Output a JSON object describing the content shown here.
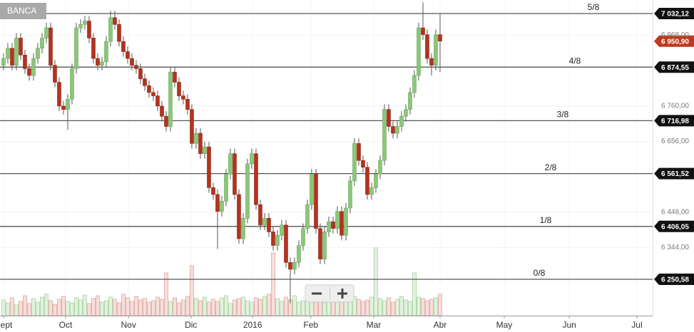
{
  "chart_data": {
    "type": "candlestick",
    "title": "BANCA",
    "x": [
      0,
      1,
      2,
      3,
      4,
      5,
      6,
      7,
      8,
      9,
      10,
      11,
      12,
      13,
      14,
      15,
      16,
      17,
      18,
      19,
      20,
      21,
      22,
      23,
      24,
      25,
      26,
      27,
      28,
      29,
      30,
      31,
      32,
      33,
      34,
      35,
      36,
      37,
      38,
      39,
      40,
      41,
      42,
      43,
      44,
      45,
      46,
      47,
      48,
      49,
      50,
      51,
      52,
      53,
      54,
      55,
      56,
      57,
      58,
      59,
      60,
      61,
      62,
      63,
      64,
      65,
      66,
      67,
      68,
      69,
      70,
      71,
      72,
      73,
      74,
      75,
      76,
      77,
      78,
      79,
      80,
      81,
      82,
      83,
      84,
      85,
      86,
      87,
      88,
      89,
      90,
      91,
      92,
      93,
      94,
      95,
      96,
      97,
      98,
      99,
      100,
      101,
      102
    ],
    "open": [
      6880,
      6900,
      6930,
      6880,
      6960,
      6910,
      6870,
      6850,
      6900,
      6930,
      6960,
      6990,
      6880,
      6830,
      6760,
      6750,
      6780,
      6870,
      6990,
      7000,
      7010,
      6960,
      6900,
      6880,
      6890,
      6950,
      7020,
      7000,
      6950,
      6920,
      6900,
      6880,
      6870,
      6840,
      6820,
      6800,
      6790,
      6760,
      6730,
      6700,
      6860,
      6830,
      6790,
      6780,
      6750,
      6650,
      6680,
      6620,
      6640,
      6520,
      6500,
      6450,
      6480,
      6560,
      6620,
      6500,
      6370,
      6430,
      6590,
      6620,
      6470,
      6410,
      6430,
      6390,
      6350,
      6380,
      6410,
      6300,
      6280,
      6300,
      6350,
      6400,
      6470,
      6560,
      6400,
      6310,
      6390,
      6420,
      6400,
      6450,
      6380,
      6460,
      6540,
      6650,
      6600,
      6580,
      6500,
      6520,
      6560,
      6600,
      6750,
      6700,
      6680,
      6700,
      6730,
      6750,
      6800,
      6850,
      6990,
      6970,
      6900,
      6880,
      6970
    ],
    "high": [
      6915,
      6945,
      6945,
      6975,
      6975,
      6925,
      6885,
      6915,
      6945,
      6975,
      7005,
      7005,
      6895,
      6845,
      6775,
      6795,
      6885,
      7005,
      7015,
      7025,
      7025,
      6975,
      6915,
      6905,
      6965,
      7040,
      7040,
      7015,
      6965,
      6935,
      6915,
      6895,
      6885,
      6855,
      6835,
      6815,
      6805,
      6775,
      6745,
      6875,
      6875,
      6845,
      6805,
      6795,
      6765,
      6695,
      6695,
      6655,
      6655,
      6535,
      6515,
      6495,
      6575,
      6635,
      6635,
      6515,
      6445,
      6605,
      6635,
      6635,
      6485,
      6445,
      6445,
      6405,
      6395,
      6425,
      6425,
      6315,
      6315,
      6365,
      6415,
      6485,
      6575,
      6575,
      6415,
      6405,
      6435,
      6435,
      6465,
      6465,
      6475,
      6555,
      6665,
      6665,
      6615,
      6595,
      6535,
      6575,
      6615,
      6765,
      6765,
      6715,
      6715,
      6745,
      6765,
      6815,
      6865,
      7005,
      7065,
      6985,
      6915,
      6985,
      7032
    ],
    "low": [
      6865,
      6885,
      6865,
      6865,
      6895,
      6855,
      6835,
      6835,
      6885,
      6915,
      6945,
      6865,
      6815,
      6745,
      6735,
      6690,
      6765,
      6855,
      6975,
      6985,
      6945,
      6885,
      6865,
      6865,
      6875,
      6935,
      6985,
      6935,
      6905,
      6885,
      6865,
      6855,
      6825,
      6805,
      6785,
      6775,
      6745,
      6715,
      6685,
      6685,
      6815,
      6775,
      6765,
      6735,
      6635,
      6635,
      6605,
      6605,
      6505,
      6485,
      6340,
      6435,
      6465,
      6545,
      6485,
      6355,
      6355,
      6415,
      6575,
      6455,
      6395,
      6395,
      6375,
      6335,
      6335,
      6365,
      6285,
      6180,
      6265,
      6285,
      6335,
      6385,
      6455,
      6385,
      6295,
      6295,
      6375,
      6385,
      6385,
      6365,
      6365,
      6445,
      6525,
      6585,
      6565,
      6485,
      6485,
      6505,
      6545,
      6585,
      6685,
      6665,
      6665,
      6685,
      6715,
      6735,
      6785,
      6835,
      6955,
      6885,
      6850,
      6865,
      6860
    ],
    "close": [
      6900,
      6930,
      6880,
      6960,
      6910,
      6870,
      6850,
      6900,
      6930,
      6960,
      6990,
      6880,
      6830,
      6760,
      6750,
      6780,
      6870,
      6990,
      7000,
      7010,
      6960,
      6900,
      6880,
      6890,
      6950,
      7020,
      7000,
      6950,
      6920,
      6900,
      6880,
      6870,
      6840,
      6820,
      6800,
      6790,
      6760,
      6730,
      6700,
      6860,
      6830,
      6790,
      6780,
      6750,
      6650,
      6680,
      6620,
      6640,
      6520,
      6500,
      6450,
      6480,
      6560,
      6620,
      6500,
      6370,
      6430,
      6590,
      6620,
      6470,
      6410,
      6430,
      6390,
      6350,
      6380,
      6410,
      6300,
      6280,
      6300,
      6350,
      6400,
      6470,
      6560,
      6400,
      6310,
      6390,
      6420,
      6400,
      6450,
      6380,
      6460,
      6540,
      6650,
      6600,
      6580,
      6500,
      6520,
      6560,
      6600,
      6750,
      6700,
      6680,
      6700,
      6730,
      6750,
      6800,
      6850,
      6990,
      6970,
      6900,
      6880,
      6970,
      6950.9
    ],
    "volume": [
      22,
      18,
      25,
      15,
      20,
      28,
      17,
      24,
      19,
      26,
      30,
      21,
      16,
      23,
      27,
      20,
      18,
      25,
      22,
      29,
      17,
      24,
      28,
      19,
      21,
      26,
      23,
      18,
      30,
      25,
      20,
      27,
      22,
      24,
      19,
      21,
      26,
      23,
      60,
      20,
      25,
      18,
      22,
      27,
      70,
      24,
      21,
      26,
      19,
      23,
      20,
      25,
      28,
      17,
      22,
      24,
      26,
      21,
      19,
      25,
      23,
      27,
      30,
      88,
      24,
      20,
      26,
      22,
      28,
      19,
      21,
      25,
      23,
      27,
      20,
      18,
      24,
      22,
      26,
      21,
      19,
      25,
      27,
      23,
      20,
      22,
      26,
      95,
      24,
      21,
      25,
      19,
      23,
      27,
      22,
      20,
      60,
      26,
      24,
      21,
      23,
      25,
      30
    ],
    "vlim": [
      0,
      100
    ],
    "up_color": "#8cc67a",
    "down_color": "#b3331f",
    "xlim": [
      -0.83,
      151.67
    ],
    "ylim": [
      6143.7,
      7071.9
    ],
    "xticks": [
      {
        "value": 0,
        "label": "Sept"
      },
      {
        "value": 14.5,
        "label": "Oct"
      },
      {
        "value": 29.2,
        "label": "Nov"
      },
      {
        "value": 43.8,
        "label": "Dic"
      },
      {
        "value": 58.2,
        "label": "2016"
      },
      {
        "value": 71.8,
        "label": "Feb"
      },
      {
        "value": 86.5,
        "label": "Mar"
      },
      {
        "value": 102,
        "label": "Abr"
      },
      {
        "value": 117,
        "label": "May"
      },
      {
        "value": 132.2,
        "label": "Jun"
      },
      {
        "value": 148,
        "label": "Jul"
      }
    ],
    "yticks": [
      {
        "value": 6344,
        "label": "6 344,00"
      },
      {
        "value": 6448,
        "label": "6 448,00"
      },
      {
        "value": 6656,
        "label": "6 656,00"
      },
      {
        "value": 6760,
        "label": "6 760,00"
      },
      {
        "value": 6968,
        "label": "6 968,00"
      }
    ],
    "levels": [
      {
        "name": "5/8",
        "value": 7032.12,
        "label": "7 032,12"
      },
      {
        "name": "4/8",
        "value": 6874.55,
        "label": "6 874,55"
      },
      {
        "name": "3/8",
        "value": 6716.98,
        "label": "6 716,98"
      },
      {
        "name": "2/8",
        "value": 6561.52,
        "label": "6 561,52"
      },
      {
        "name": "1/8",
        "value": 6406.05,
        "label": "6 406,05"
      },
      {
        "name": "0/8",
        "value": 6250.58,
        "label": "6 250,58"
      }
    ],
    "last_price": {
      "value": 6950.9,
      "label": "6 950,90",
      "color": "#c0391f"
    },
    "grid": true
  }
}
